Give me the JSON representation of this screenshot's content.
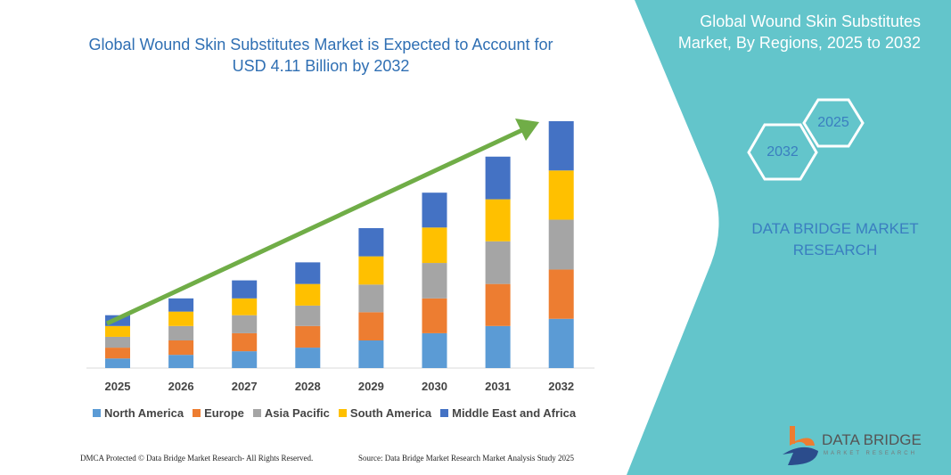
{
  "header": {
    "title_line1": "Global Wound Skin Substitutes Market is Expected to Account for",
    "title_line2": "USD 4.11 Billion by 2032"
  },
  "side_panel": {
    "title_line1": "Global Wound Skin Substitutes",
    "title_line2": "Market, By Regions, 2025 to 2032",
    "hex_start": "2025",
    "hex_end": "2032",
    "brand_line1": "DATA BRIDGE MARKET",
    "brand_line2": "RESEARCH",
    "panel_color": "#63C5CB",
    "logo_text": "DATA BRIDGE",
    "logo_subtext": "MARKET RESEARCH"
  },
  "footer": {
    "left": "DMCA Protected © Data Bridge Market Research- All Rights Reserved.",
    "right": "Source: Data Bridge Market Research Market Analysis Study 2025"
  },
  "chart_data": {
    "type": "bar",
    "stacked": true,
    "categories": [
      "2025",
      "2026",
      "2027",
      "2028",
      "2029",
      "2030",
      "2031",
      "2032"
    ],
    "series": [
      {
        "name": "North America",
        "color": "#5B9BD5",
        "values": [
          0.16,
          0.22,
          0.28,
          0.34,
          0.46,
          0.58,
          0.7,
          0.82
        ]
      },
      {
        "name": "Europe",
        "color": "#ED7D31",
        "values": [
          0.18,
          0.24,
          0.3,
          0.36,
          0.47,
          0.58,
          0.7,
          0.82
        ]
      },
      {
        "name": "Asia Pacific",
        "color": "#A5A5A5",
        "values": [
          0.18,
          0.24,
          0.3,
          0.34,
          0.46,
          0.59,
          0.71,
          0.83
        ]
      },
      {
        "name": "South America",
        "color": "#FFC000",
        "values": [
          0.18,
          0.24,
          0.28,
          0.36,
          0.47,
          0.59,
          0.7,
          0.82
        ]
      },
      {
        "name": "Middle East and Africa",
        "color": "#4472C4",
        "values": [
          0.18,
          0.22,
          0.3,
          0.36,
          0.47,
          0.58,
          0.71,
          0.82
        ]
      }
    ],
    "ylim": [
      0,
      4.11
    ],
    "grid": false,
    "legend_position": "bottom",
    "trend_arrow_color": "#70AD47"
  }
}
